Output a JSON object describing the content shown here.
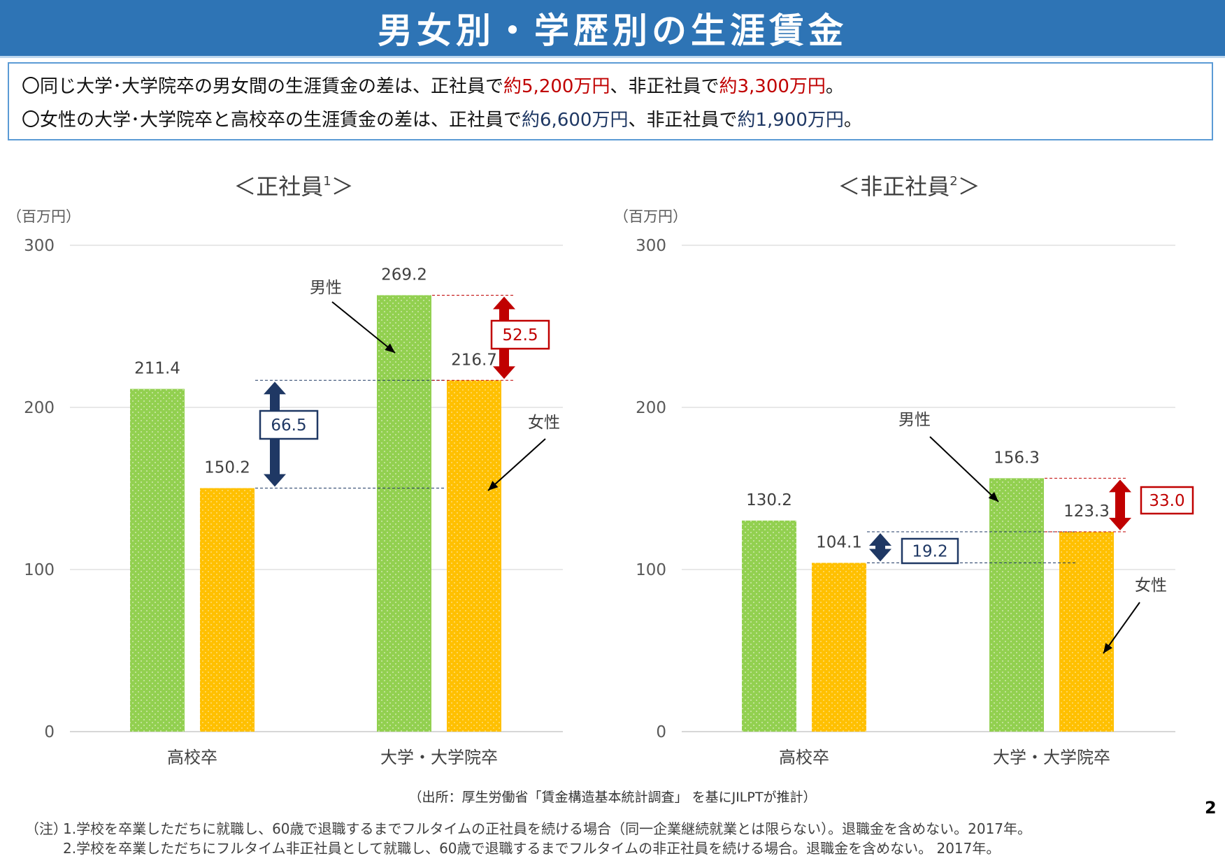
{
  "page": {
    "title": "男女別・学歴別の生涯賃金",
    "page_number": "2"
  },
  "summary": {
    "line1": {
      "prefix": "〇同じ大学･大学院卒の男女間の生涯賃金の差は、正社員で",
      "value1": "約5,200万円",
      "middle": "、非正社員で",
      "value2": "約3,300万円",
      "suffix": "。"
    },
    "line2": {
      "prefix": "〇女性の大学･大学院卒と高校卒の生涯賃金の差は、正社員で",
      "value1": "約6,600万円",
      "middle": "、非正社員で",
      "value2": "約1,900万円",
      "suffix": "。"
    }
  },
  "colors": {
    "title_bar": "#2e74b5",
    "male_bar": "#92d050",
    "female_bar": "#ffc000",
    "gap_red": "#c00000",
    "gap_navy": "#1f3864",
    "grid": "#d9d9d9"
  },
  "chart_data": [
    {
      "type": "bar",
      "title": "＜正社員",
      "title_sup": "1",
      "title_end": "＞",
      "unit_label": "（百万円）",
      "ylim": [
        0,
        300
      ],
      "yticks": [
        0,
        100,
        200,
        300
      ],
      "grid": true,
      "categories": [
        "高校卒",
        "大学・大学院卒"
      ],
      "series": [
        {
          "name": "男性",
          "values": [
            211.4,
            269.2
          ],
          "color": "#92d050"
        },
        {
          "name": "女性",
          "values": [
            150.2,
            216.7
          ],
          "color": "#ffc000"
        }
      ],
      "series_labels": [
        {
          "series": 0,
          "category": 1,
          "text": "男性"
        },
        {
          "series": 1,
          "category": 1,
          "text": "女性"
        }
      ],
      "gaps": [
        {
          "label": "66.5",
          "from": 150.2,
          "to": 216.7,
          "color": "#1f3864"
        },
        {
          "label": "52.5",
          "from": 216.7,
          "to": 269.2,
          "color": "#c00000"
        }
      ]
    },
    {
      "type": "bar",
      "title": "＜非正社員",
      "title_sup": "2",
      "title_end": "＞",
      "unit_label": "（百万円）",
      "ylim": [
        0,
        300
      ],
      "yticks": [
        0,
        100,
        200,
        300
      ],
      "grid": true,
      "categories": [
        "高校卒",
        "大学・大学院卒"
      ],
      "series": [
        {
          "name": "男性",
          "values": [
            130.2,
            156.3
          ],
          "color": "#92d050"
        },
        {
          "name": "女性",
          "values": [
            104.1,
            123.3
          ],
          "color": "#ffc000"
        }
      ],
      "series_labels": [
        {
          "series": 0,
          "category": 1,
          "text": "男性"
        },
        {
          "series": 1,
          "category": 1,
          "text": "女性"
        }
      ],
      "gaps": [
        {
          "label": "19.2",
          "from": 104.1,
          "to": 123.3,
          "color": "#1f3864"
        },
        {
          "label": "33.0",
          "from": 123.3,
          "to": 156.3,
          "color": "#c00000"
        }
      ]
    }
  ],
  "source": "（出所：厚生労働省「賃金構造基本統計調査」 を基にJILPTが推計）",
  "notes": {
    "prefix": "（注）",
    "line1": "1.学校を卒業しただちに就職し、60歳で退職するまでフルタイムの正社員を続ける場合（同一企業継続就業とは限らない）。退職金を含めない。2017年。",
    "line2": "2.学校を卒業しただちにフルタイム非正社員として就職し、60歳で退職するまでフルタイムの非正社員を続ける場合。退職金を含めない。 2017年。"
  }
}
